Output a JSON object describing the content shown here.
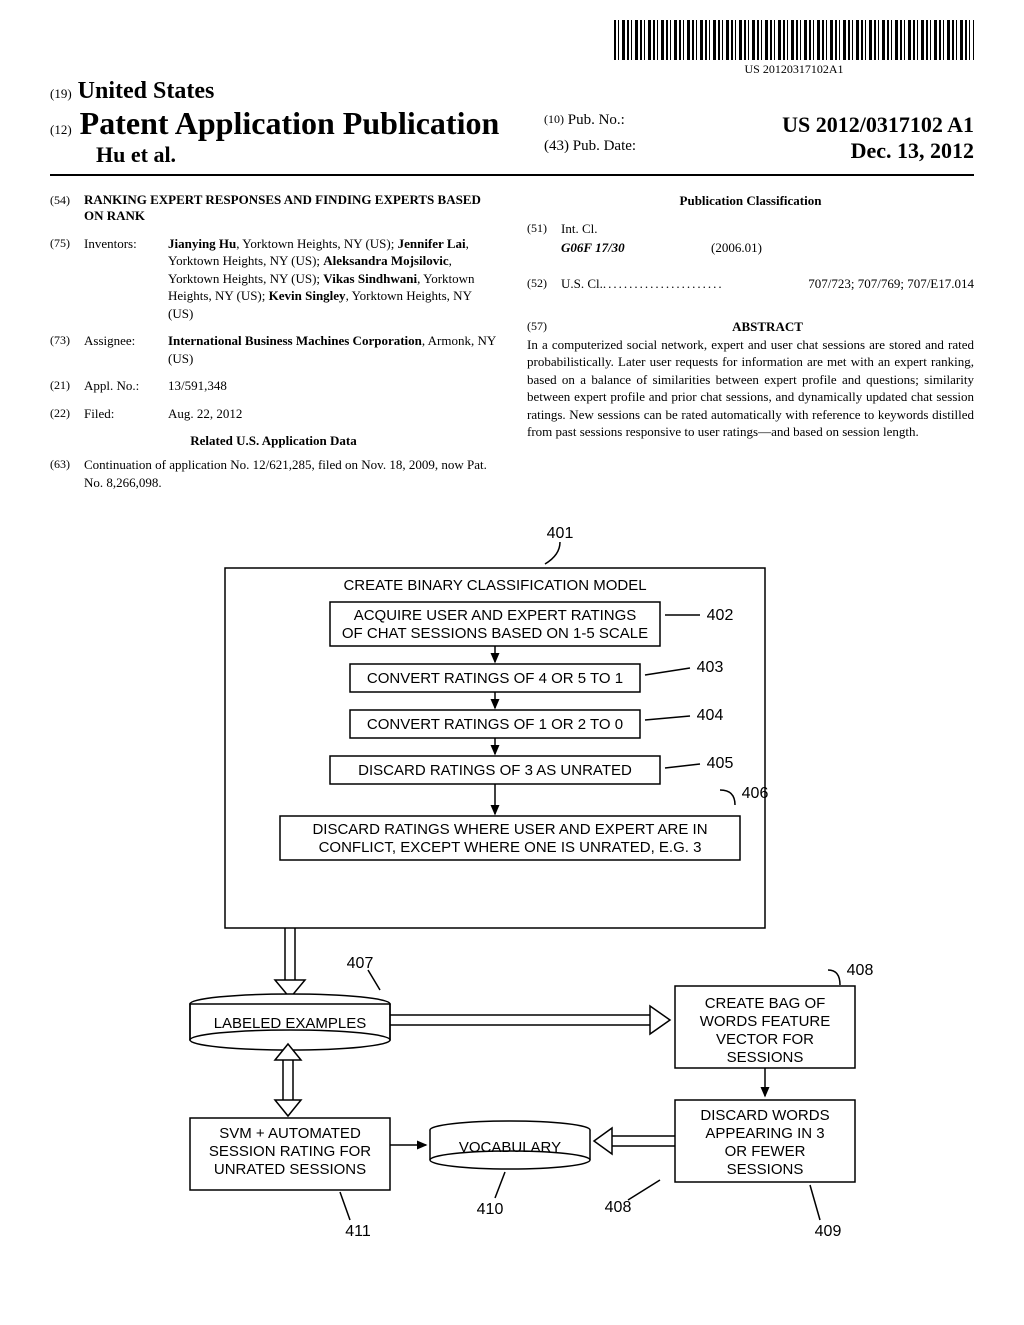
{
  "barcode_text": "US 20120317102A1",
  "header": {
    "country_num": "(19)",
    "country": "United States",
    "doc_num": "(12)",
    "doc_type": "Patent Application Publication",
    "applicant": "Hu et al.",
    "pubno_num": "(10)",
    "pubno_label": "Pub. No.:",
    "pubno": "US 2012/0317102 A1",
    "pubdate_num": "(43)",
    "pubdate_label": "Pub. Date:",
    "pubdate": "Dec. 13, 2012"
  },
  "title": {
    "code": "(54)",
    "text": "RANKING EXPERT RESPONSES AND FINDING EXPERTS BASED ON RANK"
  },
  "inventors": {
    "code": "(75)",
    "label": "Inventors:",
    "list": [
      {
        "name": "Jianying Hu",
        "loc": ", Yorktown Heights, NY (US); "
      },
      {
        "name": "Jennifer Lai",
        "loc": ", Yorktown Heights, NY (US); "
      },
      {
        "name": "Aleksandra Mojsilovic",
        "loc": ", Yorktown Heights, NY (US); "
      },
      {
        "name": "Vikas Sindhwani",
        "loc": ", Yorktown Heights, NY (US); "
      },
      {
        "name": "Kevin Singley",
        "loc": ", Yorktown Heights, NY (US)"
      }
    ]
  },
  "assignee": {
    "code": "(73)",
    "label": "Assignee:",
    "name": "International Business Machines Corporation",
    "loc": ", Armonk, NY (US)"
  },
  "applno": {
    "code": "(21)",
    "label": "Appl. No.:",
    "value": "13/591,348"
  },
  "filed": {
    "code": "(22)",
    "label": "Filed:",
    "value": "Aug. 22, 2012"
  },
  "related": {
    "heading": "Related U.S. Application Data",
    "code": "(63)",
    "text": "Continuation of application No. 12/621,285, filed on Nov. 18, 2009, now Pat. No. 8,266,098."
  },
  "classification": {
    "heading": "Publication Classification",
    "intcl": {
      "code": "(51)",
      "label": "Int. Cl.",
      "class": "G06F 17/30",
      "date": "(2006.01)"
    },
    "uscl": {
      "code": "(52)",
      "label": "U.S. Cl.",
      "main": "707/723",
      "rest": "; 707/769; 707/E17.014"
    }
  },
  "abstract": {
    "code": "(57)",
    "heading": "ABSTRACT",
    "text": "In a computerized social network, expert and user chat sessions are stored and rated probabilistically. Later user requests for information are met with an expert ranking, based on a balance of similarities between expert profile and questions; similarity between expert profile and prior chat sessions, and dynamically updated chat session ratings. New sessions can be rated automatically with reference to keywords distilled from past sessions responsive to user ratings—and based on session length."
  },
  "figure": {
    "ref_401": "401",
    "box_401": "CREATE BINARY CLASSIFICATION MODEL",
    "box_402": "ACQUIRE USER AND EXPERT RATINGS OF CHAT SESSIONS BASED ON 1-5 SCALE",
    "ref_402": "402",
    "box_403": "CONVERT RATINGS OF 4 OR 5 TO 1",
    "ref_403": "403",
    "box_404": "CONVERT RATINGS OF 1 OR 2 TO 0",
    "ref_404": "404",
    "box_405": "DISCARD RATINGS OF 3 AS UNRATED",
    "ref_405": "405",
    "box_406": "DISCARD RATINGS WHERE USER AND EXPERT ARE IN CONFLICT, EXCEPT WHERE ONE IS UNRATED, E.G. 3",
    "ref_406": "406",
    "box_407": "LABELED EXAMPLES",
    "ref_407": "407",
    "box_408": "CREATE BAG OF WORDS FEATURE VECTOR FOR SESSIONS",
    "ref_408": "408",
    "box_409": "DISCARD WORDS APPEARING IN 3 OR FEWER SESSIONS",
    "ref_409": "409",
    "box_410": "VOCABULARY",
    "ref_410": "410",
    "box_411": "SVM + AUTOMATED SESSION RATING FOR UNRATED SESSIONS",
    "ref_411": "411",
    "ref_408b": "408"
  }
}
